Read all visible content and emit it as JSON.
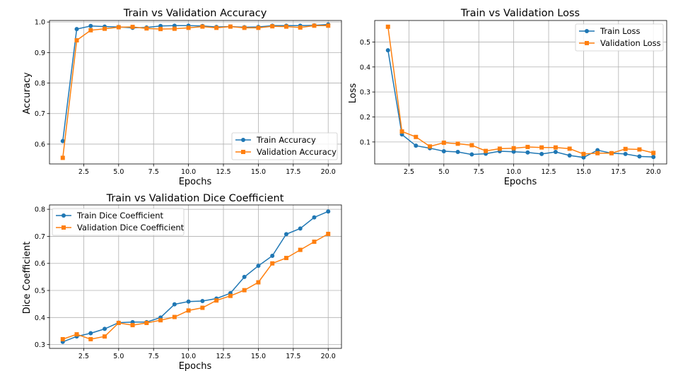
{
  "chart_data": [
    {
      "type": "line",
      "title": "Train vs Validation Accuracy",
      "xlabel": "Epochs",
      "ylabel": "Accuracy",
      "xlim": [
        0.05,
        20.95
      ],
      "ylim": [
        0.535,
        1.005
      ],
      "xticks": [
        2.5,
        5.0,
        7.5,
        10.0,
        12.5,
        15.0,
        17.5,
        20.0
      ],
      "xtick_labels": [
        "2.5",
        "5.0",
        "7.5",
        "10.0",
        "12.5",
        "15.0",
        "17.5",
        "20.0"
      ],
      "yticks": [
        0.6,
        0.7,
        0.8,
        0.9,
        1.0
      ],
      "ytick_labels": [
        "0.6",
        "0.7",
        "0.8",
        "0.9",
        "1.0"
      ],
      "grid": true,
      "legend_position": "lower-right",
      "x": [
        1,
        2,
        3,
        4,
        5,
        6,
        7,
        8,
        9,
        10,
        11,
        12,
        13,
        14,
        15,
        16,
        17,
        18,
        19,
        20
      ],
      "series": [
        {
          "name": "Train Accuracy",
          "color": "#1f77b4",
          "marker": "circle",
          "values": [
            0.61,
            0.977,
            0.987,
            0.985,
            0.984,
            0.981,
            0.982,
            0.987,
            0.988,
            0.988,
            0.987,
            0.984,
            0.985,
            0.983,
            0.984,
            0.988,
            0.988,
            0.988,
            0.989,
            0.992
          ]
        },
        {
          "name": "Validation Accuracy",
          "color": "#ff7f0e",
          "marker": "square",
          "values": [
            0.555,
            0.94,
            0.973,
            0.978,
            0.983,
            0.984,
            0.979,
            0.977,
            0.978,
            0.981,
            0.985,
            0.981,
            0.985,
            0.981,
            0.981,
            0.986,
            0.985,
            0.982,
            0.988,
            0.988
          ]
        }
      ]
    },
    {
      "type": "line",
      "title": "Train vs Validation Loss",
      "xlabel": "Epochs",
      "ylabel": "Loss",
      "xlim": [
        0.05,
        20.95
      ],
      "ylim": [
        0.012,
        0.586
      ],
      "xticks": [
        2.5,
        5.0,
        7.5,
        10.0,
        12.5,
        15.0,
        17.5,
        20.0
      ],
      "xtick_labels": [
        "2.5",
        "5.0",
        "7.5",
        "10.0",
        "12.5",
        "15.0",
        "17.5",
        "20.0"
      ],
      "yticks": [
        0.1,
        0.2,
        0.3,
        0.4,
        0.5
      ],
      "ytick_labels": [
        "0.1",
        "0.2",
        "0.3",
        "0.4",
        "0.5"
      ],
      "grid": true,
      "legend_position": "upper-right",
      "x": [
        1,
        2,
        3,
        4,
        5,
        6,
        7,
        8,
        9,
        10,
        11,
        12,
        13,
        14,
        15,
        16,
        17,
        18,
        19,
        20
      ],
      "series": [
        {
          "name": "Train Loss",
          "color": "#1f77b4",
          "marker": "circle",
          "values": [
            0.467,
            0.13,
            0.085,
            0.075,
            0.063,
            0.06,
            0.05,
            0.053,
            0.063,
            0.061,
            0.058,
            0.052,
            0.06,
            0.046,
            0.038,
            0.067,
            0.055,
            0.052,
            0.042,
            0.04
          ]
        },
        {
          "name": "Validation Loss",
          "color": "#ff7f0e",
          "marker": "square",
          "values": [
            0.561,
            0.142,
            0.12,
            0.082,
            0.097,
            0.093,
            0.087,
            0.064,
            0.073,
            0.075,
            0.08,
            0.078,
            0.078,
            0.073,
            0.052,
            0.055,
            0.055,
            0.072,
            0.07,
            0.056
          ]
        }
      ]
    },
    {
      "type": "line",
      "title": "Train vs Validation Dice Coefficient",
      "xlabel": "Epochs",
      "ylabel": "Dice Coefficient",
      "xlim": [
        0.05,
        20.95
      ],
      "ylim": [
        0.286,
        0.816
      ],
      "xticks": [
        2.5,
        5.0,
        7.5,
        10.0,
        12.5,
        15.0,
        17.5,
        20.0
      ],
      "xtick_labels": [
        "2.5",
        "5.0",
        "7.5",
        "10.0",
        "12.5",
        "15.0",
        "17.5",
        "20.0"
      ],
      "yticks": [
        0.3,
        0.4,
        0.5,
        0.6,
        0.7,
        0.8
      ],
      "ytick_labels": [
        "0.3",
        "0.4",
        "0.5",
        "0.6",
        "0.7",
        "0.8"
      ],
      "grid": true,
      "legend_position": "upper-left",
      "x": [
        1,
        2,
        3,
        4,
        5,
        6,
        7,
        8,
        9,
        10,
        11,
        12,
        13,
        14,
        15,
        16,
        17,
        18,
        19,
        20
      ],
      "series": [
        {
          "name": "Train Dice Coefficient",
          "color": "#1f77b4",
          "marker": "circle",
          "values": [
            0.31,
            0.33,
            0.342,
            0.358,
            0.381,
            0.383,
            0.383,
            0.4,
            0.449,
            0.459,
            0.461,
            0.47,
            0.49,
            0.55,
            0.591,
            0.628,
            0.708,
            0.729,
            0.77,
            0.792
          ]
        },
        {
          "name": "Validation Dice Coefficient",
          "color": "#ff7f0e",
          "marker": "square",
          "values": [
            0.32,
            0.338,
            0.32,
            0.33,
            0.38,
            0.372,
            0.38,
            0.39,
            0.402,
            0.426,
            0.436,
            0.463,
            0.48,
            0.501,
            0.53,
            0.6,
            0.62,
            0.65,
            0.68,
            0.709
          ]
        }
      ]
    }
  ]
}
